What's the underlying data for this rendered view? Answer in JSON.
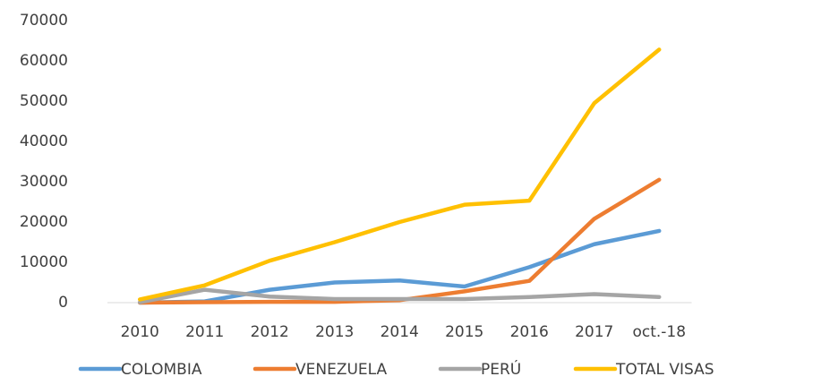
{
  "chart_data": {
    "type": "line",
    "categories": [
      "2010",
      "2011",
      "2012",
      "2013",
      "2014",
      "2015",
      "2016",
      "2017",
      "oct.-18"
    ],
    "series": [
      {
        "name": "COLOMBIA",
        "color": "#5b9bd5",
        "values": [
          0,
          300,
          3200,
          5000,
          5500,
          4000,
          8800,
          14500,
          17800
        ]
      },
      {
        "name": "VENEZUELA",
        "color": "#ed7d31",
        "values": [
          0,
          100,
          200,
          200,
          600,
          2800,
          5400,
          20800,
          30500
        ]
      },
      {
        "name": "PERÚ",
        "color": "#a5a5a5",
        "values": [
          100,
          3200,
          1500,
          900,
          900,
          900,
          1400,
          2100,
          1400
        ]
      },
      {
        "name": "TOTAL VISAS",
        "color": "#ffc000",
        "values": [
          800,
          4300,
          10400,
          15000,
          20000,
          24300,
          25300,
          49500,
          62800
        ]
      }
    ],
    "ylim": [
      0,
      70000
    ],
    "yticks": [
      0,
      10000,
      20000,
      30000,
      40000,
      50000,
      60000,
      70000
    ],
    "grid": false,
    "legend": "bottom"
  }
}
